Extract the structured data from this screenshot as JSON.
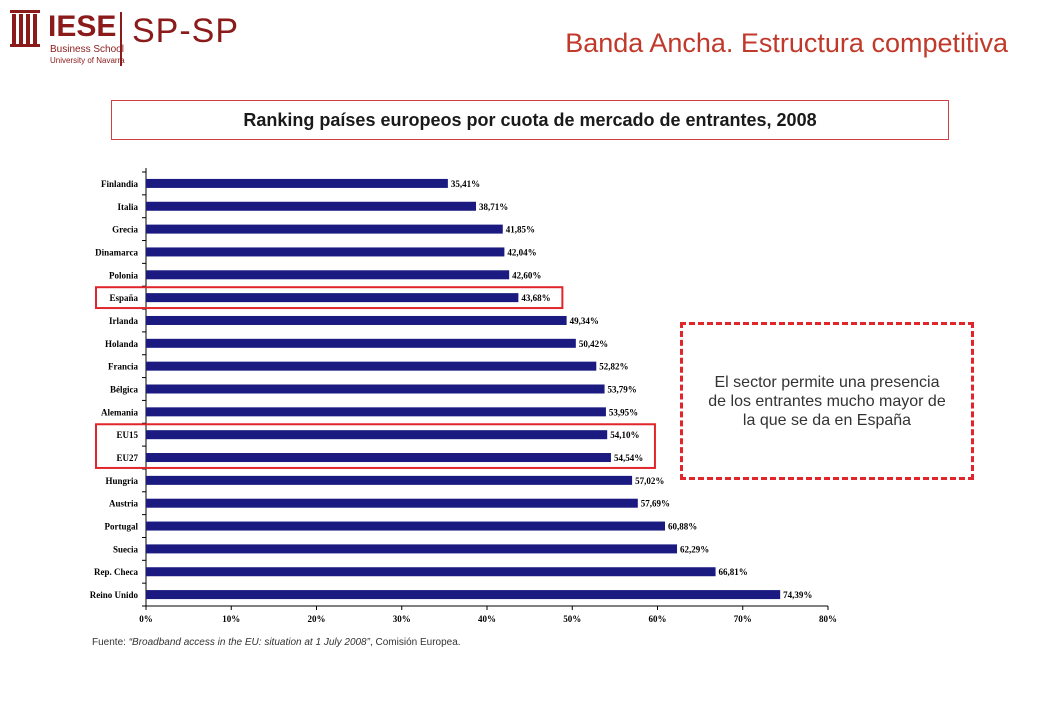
{
  "logo": {
    "iese": "IESE",
    "business_school": "Business School",
    "university": "University of Navarra",
    "spsp": "SP-SP",
    "brand_color": "#8b1a1a"
  },
  "header": {
    "title": "Banda Ancha. Estructura competitiva",
    "title_color": "#c0392b"
  },
  "chart_title": "Ranking países europeos por cuota de mercado de entrantes, 2008",
  "note": "El sector permite una presencia de los entrantes mucho mayor de la que se da en España",
  "source": {
    "prefix": "Fuente: ",
    "italic": "“Broadband access in the EU: situation at 1 July 2008”",
    "suffix": ", Comisión Europea."
  },
  "chart_data": {
    "type": "bar",
    "orientation": "horizontal",
    "categories": [
      "Finlandia",
      "Italia",
      "Grecia",
      "Dinamarca",
      "Polonia",
      "España",
      "Irlanda",
      "Holanda",
      "Francia",
      "Bélgica",
      "Alemania",
      "EU15",
      "EU27",
      "Hungria",
      "Austria",
      "Portugal",
      "Suecia",
      "Rep. Checa",
      "Reino Unido"
    ],
    "values": [
      35.41,
      38.71,
      41.85,
      42.04,
      42.6,
      43.68,
      49.34,
      50.42,
      52.82,
      53.79,
      53.95,
      54.1,
      54.54,
      57.02,
      57.69,
      60.88,
      62.29,
      66.81,
      74.39
    ],
    "data_labels": [
      "35,41%",
      "38,71%",
      "41,85%",
      "42,04%",
      "42,60%",
      "43,68%",
      "49,34%",
      "50,42%",
      "52,82%",
      "53,79%",
      "53,95%",
      "54,10%",
      "54,54%",
      "57,02%",
      "57,69%",
      "60,88%",
      "62,29%",
      "66,81%",
      "74,39%"
    ],
    "xlim": [
      0,
      80
    ],
    "x_ticks": [
      "0%",
      "10%",
      "20%",
      "30%",
      "40%",
      "50%",
      "60%",
      "70%",
      "80%"
    ],
    "highlighted": [
      "España",
      "EU15",
      "EU27"
    ],
    "bar_color": "#1a1a80",
    "highlight_color": "#e0262b",
    "grid": false
  }
}
